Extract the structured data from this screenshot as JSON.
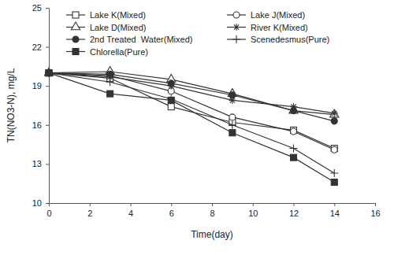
{
  "chart_data": {
    "type": "line",
    "x_label": "Time(day)",
    "y_label": "TN(NO3-N), mg/L",
    "x": [
      0,
      3,
      6,
      9,
      12,
      14
    ],
    "xlim": [
      0,
      16
    ],
    "xticks": [
      0,
      2,
      4,
      6,
      8,
      10,
      12,
      14,
      16
    ],
    "ylim": [
      10,
      25
    ],
    "yticks": [
      10,
      13,
      16,
      19,
      22,
      25
    ],
    "grid": false,
    "legend": "top",
    "series": [
      {
        "name": "Lake K(Mixed)",
        "color": "#333333",
        "marker": "square-open",
        "values": [
          20,
          19.6,
          17.4,
          16.2,
          15.6,
          14.2
        ]
      },
      {
        "name": "Lake J(Mixed)",
        "color": "#333333",
        "marker": "circle-open",
        "values": [
          20,
          19.8,
          18.6,
          16.6,
          15.5,
          14.1
        ]
      },
      {
        "name": "Lake D(Mixed)",
        "color": "#333333",
        "marker": "triangle-open",
        "values": [
          20,
          20.1,
          19.5,
          18.4,
          17.1,
          16.8
        ]
      },
      {
        "name": "River K(Mixed)",
        "color": "#333333",
        "marker": "asterisk",
        "values": [
          20,
          19.7,
          19.0,
          17.9,
          17.4,
          16.9
        ]
      },
      {
        "name": "2nd Treated  Water(Mixed)",
        "color": "#333333",
        "marker": "circle",
        "values": [
          20,
          19.9,
          19.2,
          18.3,
          17.1,
          16.3
        ]
      },
      {
        "name": "Scenedesmus(Pure)",
        "color": "#333333",
        "marker": "plus",
        "values": [
          20,
          19.3,
          18.0,
          16.0,
          14.2,
          12.3
        ]
      },
      {
        "name": "Chlorella(Pure)",
        "color": "#333333",
        "marker": "square",
        "values": [
          20,
          18.4,
          17.9,
          15.4,
          13.5,
          11.6
        ]
      }
    ]
  }
}
